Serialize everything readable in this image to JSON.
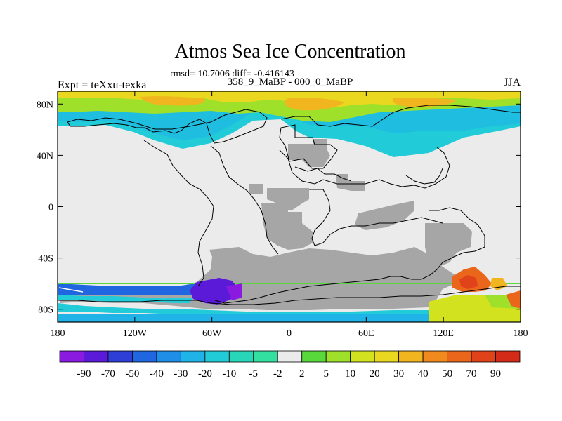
{
  "chart_data": {
    "type": "heatmap",
    "title": "Atmos Sea Ice Concentration",
    "subtitle_stats": "rmsd= 10.7006 diff= -0.416143",
    "subtitle_period": "358_9_MaBP - 000_0_MaBP",
    "left_label": "Expt = teXxu-texka",
    "right_label": "JJA",
    "x_ticks": [
      "180",
      "120W",
      "60W",
      "0",
      "60E",
      "120E",
      "180"
    ],
    "x_tick_values": [
      -180,
      -120,
      -60,
      0,
      60,
      120,
      180
    ],
    "y_ticks": [
      "80N",
      "40N",
      "0",
      "40S",
      "80S"
    ],
    "y_tick_values": [
      80,
      40,
      0,
      -40,
      -80
    ],
    "xlim": [
      -180,
      180
    ],
    "ylim": [
      -90,
      90
    ],
    "colorbar": {
      "labels": [
        "-90",
        "-70",
        "-50",
        "-40",
        "-30",
        "-20",
        "-10",
        "-5",
        "-2",
        "2",
        "5",
        "10",
        "20",
        "30",
        "40",
        "50",
        "70",
        "90"
      ],
      "colors": [
        "#8a1ae0",
        "#5a1ad8",
        "#2e3fd8",
        "#1f66e0",
        "#1e8ee6",
        "#1fb3e8",
        "#21cbd8",
        "#28d6b8",
        "#34e0a0",
        "#ebebeb",
        "#58d83a",
        "#9ee02a",
        "#d3e21f",
        "#e9d81f",
        "#f1b51f",
        "#f08a1e",
        "#e9661a",
        "#e0421a",
        "#d42a18"
      ]
    },
    "regions": [
      {
        "name": "arctic-orange-core",
        "value": 45
      },
      {
        "name": "arctic-green-band",
        "value": 7
      },
      {
        "name": "arctic-cyan-band",
        "value": -15
      },
      {
        "name": "antarctic-purple",
        "value": -70
      },
      {
        "name": "antarctic-blue",
        "value": -40
      },
      {
        "name": "antarctic-yellow",
        "value": 20
      },
      {
        "name": "antarctic-orange",
        "value": 60
      }
    ],
    "land_mask_color": "#a6a6a6",
    "neutral_ocean_color": "#ebebeb"
  }
}
